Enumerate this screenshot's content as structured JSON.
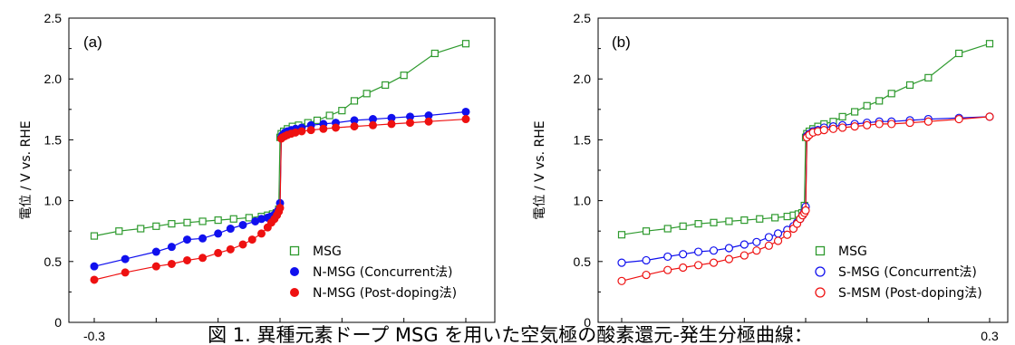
{
  "caption": "図 1. 異種元素ドープ MSG を用いた空気極の酸素還元-発生分極曲線：",
  "colors": {
    "green": "#2e9a2e",
    "blue": "#1010ee",
    "red": "#ee1111"
  },
  "chart_data": [
    {
      "type": "line",
      "panel_label": "(a)",
      "ylabel": "電位 / V vs. RHE",
      "y_ticks": [
        "0",
        "0.5",
        "1.0",
        "1.5",
        "2.0",
        "2.5"
      ],
      "ylim": [
        0,
        2.5
      ],
      "x_tick_labels": [
        "-0.3"
      ],
      "xlim": [
        -0.3,
        0.3
      ],
      "legend_position": "bottom-right",
      "series": [
        {
          "name": "MSG",
          "marker": "open-square",
          "color": "green",
          "x": [
            -0.3,
            -0.26,
            -0.225,
            -0.2,
            -0.175,
            -0.15,
            -0.125,
            -0.1,
            -0.075,
            -0.05,
            -0.03,
            -0.02,
            -0.012,
            -0.006,
            -0.002,
            0.0,
            0.002,
            0.006,
            0.012,
            0.02,
            0.03,
            0.045,
            0.06,
            0.08,
            0.1,
            0.12,
            0.14,
            0.17,
            0.2,
            0.25,
            0.3
          ],
          "y": [
            0.71,
            0.75,
            0.77,
            0.79,
            0.81,
            0.82,
            0.83,
            0.84,
            0.85,
            0.86,
            0.87,
            0.88,
            0.89,
            0.9,
            0.93,
            1.52,
            1.55,
            1.57,
            1.59,
            1.61,
            1.62,
            1.64,
            1.66,
            1.7,
            1.74,
            1.82,
            1.88,
            1.95,
            2.03,
            2.21,
            2.29
          ]
        },
        {
          "name": "N-MSG (Concurrent法)",
          "marker": "filled-circle",
          "color": "blue",
          "x": [
            -0.3,
            -0.25,
            -0.2,
            -0.175,
            -0.15,
            -0.125,
            -0.1,
            -0.08,
            -0.06,
            -0.04,
            -0.03,
            -0.02,
            -0.015,
            -0.01,
            -0.006,
            -0.003,
            0.0,
            0.002,
            0.004,
            0.008,
            0.012,
            0.018,
            0.025,
            0.035,
            0.05,
            0.07,
            0.09,
            0.12,
            0.15,
            0.18,
            0.21,
            0.24,
            0.3
          ],
          "y": [
            0.46,
            0.52,
            0.58,
            0.62,
            0.68,
            0.69,
            0.73,
            0.77,
            0.8,
            0.83,
            0.85,
            0.86,
            0.87,
            0.88,
            0.9,
            0.92,
            0.98,
            1.52,
            1.54,
            1.56,
            1.57,
            1.58,
            1.59,
            1.6,
            1.62,
            1.63,
            1.64,
            1.66,
            1.67,
            1.68,
            1.69,
            1.7,
            1.73
          ]
        },
        {
          "name": "N-MSG (Post-doping法)",
          "marker": "filled-circle",
          "color": "red",
          "x": [
            -0.3,
            -0.25,
            -0.2,
            -0.175,
            -0.15,
            -0.125,
            -0.1,
            -0.08,
            -0.06,
            -0.045,
            -0.03,
            -0.02,
            -0.014,
            -0.009,
            -0.005,
            -0.002,
            0.0,
            0.002,
            0.004,
            0.008,
            0.012,
            0.018,
            0.025,
            0.035,
            0.05,
            0.07,
            0.09,
            0.12,
            0.15,
            0.18,
            0.21,
            0.24,
            0.3
          ],
          "y": [
            0.35,
            0.41,
            0.46,
            0.48,
            0.51,
            0.53,
            0.57,
            0.6,
            0.64,
            0.68,
            0.73,
            0.78,
            0.82,
            0.85,
            0.88,
            0.91,
            0.94,
            1.51,
            1.52,
            1.53,
            1.54,
            1.55,
            1.56,
            1.57,
            1.58,
            1.59,
            1.6,
            1.61,
            1.62,
            1.63,
            1.64,
            1.65,
            1.67
          ]
        }
      ]
    },
    {
      "type": "line",
      "panel_label": "(b)",
      "ylabel": "電位 / V vs. RHE",
      "y_ticks": [
        "0",
        "0.5",
        "1.0",
        "1.5",
        "2.0",
        "2.5"
      ],
      "ylim": [
        0,
        2.5
      ],
      "x_tick_labels": [
        "0.3"
      ],
      "xlim": [
        -0.3,
        0.3
      ],
      "legend_position": "bottom-right",
      "series": [
        {
          "name": "MSG",
          "marker": "open-square",
          "color": "green",
          "x": [
            -0.3,
            -0.26,
            -0.225,
            -0.2,
            -0.175,
            -0.15,
            -0.125,
            -0.1,
            -0.075,
            -0.05,
            -0.03,
            -0.02,
            -0.012,
            -0.006,
            -0.002,
            0.0,
            0.002,
            0.006,
            0.012,
            0.02,
            0.03,
            0.045,
            0.06,
            0.08,
            0.1,
            0.12,
            0.14,
            0.17,
            0.2,
            0.25,
            0.3
          ],
          "y": [
            0.72,
            0.75,
            0.77,
            0.79,
            0.81,
            0.82,
            0.83,
            0.84,
            0.85,
            0.86,
            0.87,
            0.88,
            0.89,
            0.9,
            0.96,
            1.52,
            1.55,
            1.57,
            1.59,
            1.61,
            1.63,
            1.65,
            1.69,
            1.73,
            1.78,
            1.82,
            1.88,
            1.95,
            2.01,
            2.21,
            2.29
          ]
        },
        {
          "name": "S-MSG (Concurrent法)",
          "marker": "open-circle",
          "color": "blue",
          "x": [
            -0.3,
            -0.26,
            -0.225,
            -0.2,
            -0.175,
            -0.15,
            -0.125,
            -0.1,
            -0.08,
            -0.06,
            -0.045,
            -0.03,
            -0.02,
            -0.014,
            -0.009,
            -0.005,
            -0.002,
            0.0,
            0.002,
            0.006,
            0.012,
            0.02,
            0.03,
            0.045,
            0.06,
            0.08,
            0.1,
            0.12,
            0.14,
            0.17,
            0.2,
            0.25,
            0.3
          ],
          "y": [
            0.49,
            0.51,
            0.54,
            0.56,
            0.58,
            0.59,
            0.61,
            0.64,
            0.66,
            0.7,
            0.73,
            0.76,
            0.79,
            0.82,
            0.85,
            0.88,
            0.91,
            0.95,
            1.53,
            1.55,
            1.57,
            1.58,
            1.6,
            1.61,
            1.62,
            1.63,
            1.64,
            1.65,
            1.65,
            1.66,
            1.67,
            1.68,
            1.69
          ]
        },
        {
          "name": "S-MSM (Post-doping法)",
          "marker": "open-circle",
          "color": "red",
          "x": [
            -0.3,
            -0.26,
            -0.225,
            -0.2,
            -0.175,
            -0.15,
            -0.125,
            -0.1,
            -0.08,
            -0.06,
            -0.045,
            -0.03,
            -0.02,
            -0.014,
            -0.009,
            -0.005,
            -0.002,
            0.0,
            0.002,
            0.006,
            0.012,
            0.02,
            0.03,
            0.045,
            0.06,
            0.08,
            0.1,
            0.12,
            0.14,
            0.17,
            0.2,
            0.25,
            0.3
          ],
          "y": [
            0.34,
            0.39,
            0.43,
            0.45,
            0.47,
            0.49,
            0.52,
            0.55,
            0.59,
            0.63,
            0.67,
            0.72,
            0.77,
            0.81,
            0.85,
            0.88,
            0.9,
            0.92,
            1.52,
            1.54,
            1.56,
            1.57,
            1.58,
            1.59,
            1.6,
            1.61,
            1.62,
            1.63,
            1.63,
            1.64,
            1.65,
            1.67,
            1.69
          ]
        }
      ]
    }
  ]
}
